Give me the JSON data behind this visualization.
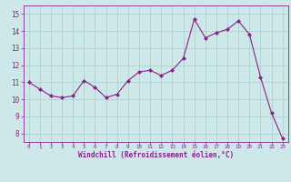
{
  "x": [
    0,
    1,
    2,
    3,
    4,
    5,
    6,
    7,
    8,
    9,
    10,
    11,
    12,
    13,
    14,
    15,
    16,
    17,
    18,
    19,
    20,
    21,
    22,
    23
  ],
  "y": [
    11.0,
    10.6,
    10.2,
    10.1,
    10.2,
    11.1,
    10.7,
    10.1,
    10.3,
    11.1,
    11.6,
    11.7,
    11.4,
    11.7,
    12.4,
    14.7,
    13.6,
    13.9,
    14.1,
    14.6,
    13.8,
    11.3,
    9.2,
    7.7
  ],
  "line_color": "#882288",
  "marker_color": "#882288",
  "bg_color": "#cce8e8",
  "grid_color": "#aacccc",
  "xlabel": "Windchill (Refroidissement éolien,°C)",
  "xlabel_color": "#882288",
  "tick_color": "#882288",
  "ylim": [
    7.5,
    15.5
  ],
  "yticks": [
    8,
    9,
    10,
    11,
    12,
    13,
    14,
    15
  ],
  "xticks": [
    0,
    1,
    2,
    3,
    4,
    5,
    6,
    7,
    8,
    9,
    10,
    11,
    12,
    13,
    14,
    15,
    16,
    17,
    18,
    19,
    20,
    21,
    22,
    23
  ],
  "xlim": [
    -0.5,
    23.5
  ]
}
